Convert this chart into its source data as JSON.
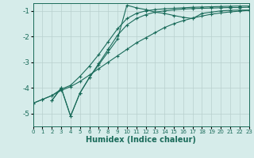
{
  "xlabel": "Humidex (Indice chaleur)",
  "bg_color": "#d6ecea",
  "grid_color": "#b8d0ce",
  "line_color": "#1a6b5a",
  "xlim": [
    0,
    23
  ],
  "ylim": [
    -5.5,
    -0.7
  ],
  "xticks": [
    0,
    1,
    2,
    3,
    4,
    5,
    6,
    7,
    8,
    9,
    10,
    11,
    12,
    13,
    14,
    15,
    16,
    17,
    18,
    19,
    20,
    21,
    22,
    23
  ],
  "yticks": [
    -5,
    -4,
    -3,
    -2,
    -1
  ],
  "series": [
    {
      "x": [
        0,
        1,
        2,
        3,
        4,
        5,
        6,
        7,
        8,
        9,
        10,
        11,
        12,
        13,
        14,
        15,
        16,
        17,
        18,
        19,
        20,
        21,
        22,
        23
      ],
      "y": [
        -4.6,
        -4.45,
        -4.3,
        -4.1,
        -3.95,
        -3.75,
        -3.5,
        -3.25,
        -3.0,
        -2.75,
        -2.5,
        -2.25,
        -2.05,
        -1.85,
        -1.65,
        -1.5,
        -1.38,
        -1.28,
        -1.2,
        -1.13,
        -1.08,
        -1.04,
        -1.01,
        -0.98
      ]
    },
    {
      "x": [
        0,
        1,
        2,
        3,
        4,
        5,
        6,
        7,
        8,
        9,
        10,
        11,
        12,
        13,
        14,
        15,
        16,
        17,
        18,
        19,
        20,
        21,
        22,
        23
      ],
      "y": [
        -4.6,
        -4.45,
        -4.3,
        -4.05,
        -3.9,
        -3.55,
        -3.15,
        -2.7,
        -2.2,
        -1.7,
        -1.3,
        -1.1,
        -1.0,
        -0.95,
        -0.92,
        -0.9,
        -0.88,
        -0.86,
        -0.85,
        -0.84,
        -0.83,
        -0.82,
        -0.81,
        -0.81
      ]
    },
    {
      "x": [
        2,
        3,
        4,
        5,
        6,
        7,
        8,
        9,
        10,
        11,
        12,
        13,
        14,
        15,
        16,
        17,
        18,
        19,
        20,
        21,
        22,
        23
      ],
      "y": [
        -4.5,
        -4.0,
        -5.1,
        -4.2,
        -3.6,
        -3.1,
        -2.6,
        -2.1,
        -0.78,
        -0.88,
        -0.95,
        -1.05,
        -1.1,
        -1.18,
        -1.25,
        -1.3,
        -1.1,
        -1.05,
        -1.0,
        -0.98,
        -0.97,
        -0.97
      ]
    },
    {
      "x": [
        2,
        3,
        4,
        5,
        6,
        7,
        8,
        9,
        10,
        11,
        12,
        13,
        14,
        15,
        16,
        17,
        18,
        19,
        20,
        21,
        22,
        23
      ],
      "y": [
        -4.5,
        -4.0,
        -5.1,
        -4.2,
        -3.6,
        -3.05,
        -2.5,
        -1.95,
        -1.55,
        -1.3,
        -1.15,
        -1.05,
        -1.0,
        -0.96,
        -0.93,
        -0.91,
        -0.9,
        -0.89,
        -0.88,
        -0.87,
        -0.87,
        -0.86
      ]
    }
  ]
}
